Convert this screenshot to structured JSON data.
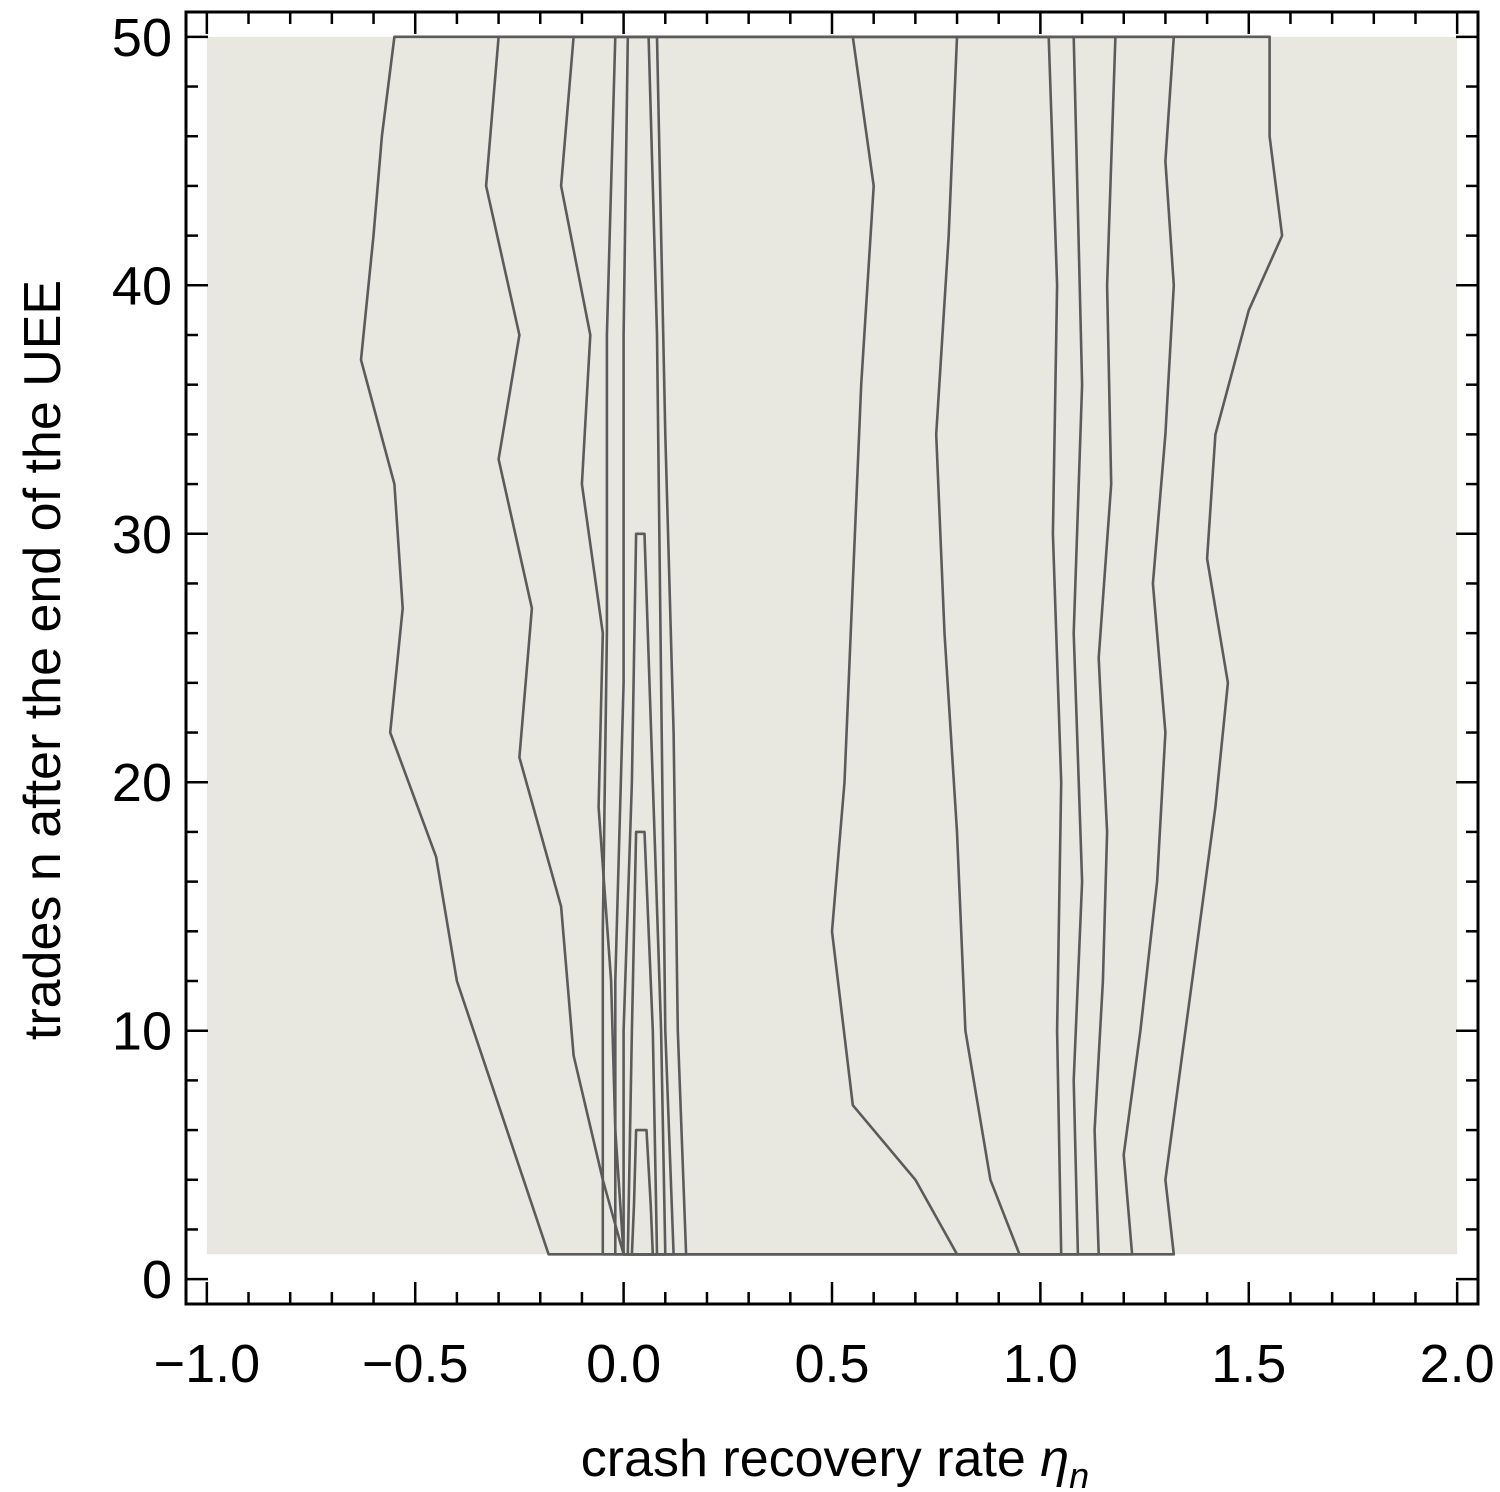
{
  "chart_data": {
    "type": "heatmap",
    "subtype": "contour",
    "title": "",
    "xlabel": "crash recovery rate",
    "xlabel_symbol": "η",
    "xlabel_subscript": "n",
    "ylabel": "trades n after the end of the UEE",
    "xlim": [
      -1.05,
      2.05
    ],
    "ylim": [
      -1,
      51
    ],
    "data_x_range": [
      -1.0,
      2.0
    ],
    "data_y_range": [
      1,
      50
    ],
    "x_ticks": [
      "−1.0",
      "−0.5",
      "0.0",
      "0.5",
      "1.0",
      "1.5",
      "2.0"
    ],
    "x_tick_values": [
      -1.0,
      -0.5,
      0.0,
      0.5,
      1.0,
      1.5,
      2.0
    ],
    "y_ticks": [
      "0",
      "10",
      "20",
      "30",
      "40",
      "50"
    ],
    "y_tick_values": [
      0,
      10,
      20,
      30,
      40,
      50
    ],
    "grid": false,
    "legend": "none",
    "colors": {
      "lowest_level": "#e8e8e0",
      "highest_level": "#2a2b2d",
      "contour_line": "#5b5b5b"
    },
    "contour_boundaries": [
      {
        "name": "level-1-outer",
        "fill": "#d6d6d0",
        "points": [
          [
            -0.55,
            50
          ],
          [
            -0.58,
            46
          ],
          [
            -0.6,
            42
          ],
          [
            -0.63,
            37
          ],
          [
            -0.55,
            32
          ],
          [
            -0.53,
            27
          ],
          [
            -0.56,
            22
          ],
          [
            -0.45,
            17
          ],
          [
            -0.4,
            12
          ],
          [
            -0.3,
            7
          ],
          [
            -0.22,
            3
          ],
          [
            -0.18,
            1
          ],
          [
            1.32,
            1
          ],
          [
            1.3,
            4
          ],
          [
            1.34,
            9
          ],
          [
            1.38,
            14
          ],
          [
            1.42,
            19
          ],
          [
            1.45,
            24
          ],
          [
            1.4,
            29
          ],
          [
            1.42,
            34
          ],
          [
            1.5,
            39
          ],
          [
            1.58,
            42
          ],
          [
            1.55,
            46
          ],
          [
            1.55,
            50
          ]
        ]
      },
      {
        "name": "level-2",
        "fill": "#c5c5c0",
        "points": [
          [
            -0.3,
            50
          ],
          [
            -0.33,
            44
          ],
          [
            -0.25,
            38
          ],
          [
            -0.3,
            33
          ],
          [
            -0.22,
            27
          ],
          [
            -0.25,
            21
          ],
          [
            -0.15,
            15
          ],
          [
            -0.12,
            9
          ],
          [
            -0.05,
            4
          ],
          [
            0.0,
            1
          ],
          [
            1.22,
            1
          ],
          [
            1.2,
            5
          ],
          [
            1.24,
            10
          ],
          [
            1.28,
            16
          ],
          [
            1.3,
            22
          ],
          [
            1.27,
            28
          ],
          [
            1.3,
            34
          ],
          [
            1.32,
            40
          ],
          [
            1.3,
            45
          ],
          [
            1.32,
            50
          ]
        ]
      },
      {
        "name": "level-3",
        "fill": "#b4b5b1",
        "points": [
          [
            -0.12,
            50
          ],
          [
            -0.15,
            44
          ],
          [
            -0.08,
            38
          ],
          [
            -0.1,
            32
          ],
          [
            -0.05,
            26
          ],
          [
            -0.06,
            19
          ],
          [
            -0.03,
            12
          ],
          [
            -0.02,
            6
          ],
          [
            0.0,
            1
          ],
          [
            1.14,
            1
          ],
          [
            1.13,
            6
          ],
          [
            1.15,
            12
          ],
          [
            1.16,
            18
          ],
          [
            1.14,
            25
          ],
          [
            1.17,
            32
          ],
          [
            1.16,
            40
          ],
          [
            1.18,
            50
          ]
        ]
      },
      {
        "name": "level-4",
        "fill": "#a3a5a4",
        "points": [
          [
            0.55,
            50
          ],
          [
            0.6,
            44
          ],
          [
            0.57,
            36
          ],
          [
            0.55,
            28
          ],
          [
            0.53,
            20
          ],
          [
            0.5,
            14
          ],
          [
            0.55,
            7
          ],
          [
            0.7,
            4
          ],
          [
            0.8,
            1
          ],
          [
            1.09,
            1
          ],
          [
            1.08,
            8
          ],
          [
            1.1,
            16
          ],
          [
            1.08,
            26
          ],
          [
            1.1,
            36
          ],
          [
            1.08,
            50
          ]
        ]
      },
      {
        "name": "level-5",
        "fill": "#959897",
        "points": [
          [
            0.8,
            50
          ],
          [
            0.78,
            42
          ],
          [
            0.75,
            34
          ],
          [
            0.77,
            26
          ],
          [
            0.8,
            18
          ],
          [
            0.82,
            10
          ],
          [
            0.88,
            4
          ],
          [
            0.95,
            1
          ],
          [
            1.05,
            1
          ],
          [
            1.04,
            10
          ],
          [
            1.05,
            20
          ],
          [
            1.03,
            30
          ],
          [
            1.04,
            40
          ],
          [
            1.02,
            50
          ]
        ]
      },
      {
        "name": "ridge-1",
        "fill": "#a8aaa9",
        "points": [
          [
            -0.02,
            50
          ],
          [
            -0.04,
            38
          ],
          [
            -0.04,
            26
          ],
          [
            -0.05,
            14
          ],
          [
            -0.05,
            1
          ],
          [
            0.15,
            1
          ],
          [
            0.13,
            10
          ],
          [
            0.12,
            22
          ],
          [
            0.1,
            34
          ],
          [
            0.08,
            50
          ]
        ]
      },
      {
        "name": "ridge-2",
        "fill": "#8e9192",
        "points": [
          [
            0.01,
            50
          ],
          [
            0.0,
            38
          ],
          [
            0.0,
            24
          ],
          [
            -0.02,
            12
          ],
          [
            -0.02,
            1
          ],
          [
            0.12,
            1
          ],
          [
            0.1,
            10
          ],
          [
            0.09,
            24
          ],
          [
            0.08,
            38
          ],
          [
            0.06,
            50
          ]
        ]
      },
      {
        "name": "ridge-3",
        "fill": "#6f7275",
        "points": [
          [
            0.03,
            30
          ],
          [
            0.02,
            20
          ],
          [
            0.0,
            10
          ],
          [
            0.0,
            1
          ],
          [
            0.1,
            1
          ],
          [
            0.09,
            10
          ],
          [
            0.07,
            20
          ],
          [
            0.05,
            30
          ]
        ]
      },
      {
        "name": "ridge-4",
        "fill": "#505356",
        "points": [
          [
            0.03,
            18
          ],
          [
            0.02,
            10
          ],
          [
            0.01,
            1
          ],
          [
            0.08,
            1
          ],
          [
            0.07,
            10
          ],
          [
            0.05,
            18
          ]
        ]
      },
      {
        "name": "ridge-5",
        "fill": "#2f3133",
        "points": [
          [
            0.03,
            6
          ],
          [
            0.025,
            3
          ],
          [
            0.02,
            1
          ],
          [
            0.07,
            1
          ],
          [
            0.065,
            3
          ],
          [
            0.055,
            6
          ]
        ]
      }
    ]
  }
}
